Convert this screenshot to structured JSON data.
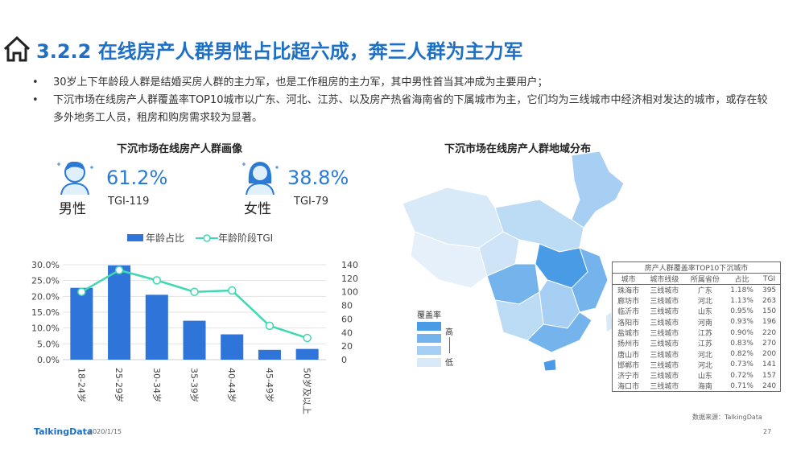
{
  "header": {
    "title": "3.2.2 在线房产人群男性占比超六成，奔三人群为主力军"
  },
  "bullets": [
    "30岁上下年龄段人群是结婚买房人群的主力军，也是工作租房的主力军，其中男性首当其冲成为主要用户；",
    "下沉市场在线房产人群覆盖率TOP10城市以广东、河北、江苏、以及房产热省海南省的下属城市为主，它们均为三线城市中经济相对发达的城市，或存在较多外地务工人员，租房和购房需求较为显著。"
  ],
  "bullet_marker": "•",
  "portrait": {
    "title": "下沉市场在线房产人群画像",
    "male": {
      "label": "男性",
      "pct": "61.2%",
      "tgi": "TGI-119"
    },
    "female": {
      "label": "女性",
      "pct": "38.8%",
      "tgi": "TGI-79"
    }
  },
  "chart_data": {
    "type": "bar",
    "categories": [
      "18-24岁",
      "25-29岁",
      "30-34岁",
      "35-39岁",
      "40-44岁",
      "45-49岁",
      "50岁及以上"
    ],
    "series": [
      {
        "name": "年龄占比",
        "type": "bar",
        "axis": "left",
        "values": [
          22.7,
          29.8,
          20.5,
          12.3,
          8.0,
          3.1,
          3.4
        ],
        "color": "#2f75d9"
      },
      {
        "name": "年龄阶段TGI",
        "type": "line",
        "axis": "right",
        "values": [
          100,
          132,
          117,
          100,
          102,
          50,
          32
        ],
        "color": "#3fd8b0"
      }
    ],
    "y_left": {
      "ylim": [
        0,
        30
      ],
      "ticks": [
        "0.0%",
        "5.0%",
        "10.0%",
        "15.0%",
        "20.0%",
        "25.0%",
        "30.0%"
      ]
    },
    "y_right": {
      "ylim": [
        0,
        140
      ],
      "ticks": [
        "0",
        "20",
        "40",
        "60",
        "80",
        "100",
        "120",
        "140"
      ]
    },
    "legend": "top",
    "grid": true
  },
  "map": {
    "title": "下沉市场在线房产人群地域分布",
    "legend_title": "覆盖率",
    "legend_high": "高",
    "legend_low": "低",
    "colors": [
      "#4a9be6",
      "#74b3ec",
      "#a6cff3",
      "#d8e9f8"
    ]
  },
  "table": {
    "title": "房产人群覆盖率TOP10下沉城市",
    "headers": [
      "城市",
      "城市线级",
      "所属省份",
      "占比",
      "TGI"
    ],
    "rows": [
      [
        "珠海市",
        "三线城市",
        "广东",
        "1.18%",
        "395"
      ],
      [
        "廊坊市",
        "三线城市",
        "河北",
        "1.13%",
        "263"
      ],
      [
        "临沂市",
        "三线城市",
        "山东",
        "0.95%",
        "150"
      ],
      [
        "洛阳市",
        "三线城市",
        "河南",
        "0.93%",
        "196"
      ],
      [
        "盐城市",
        "三线城市",
        "江苏",
        "0.90%",
        "220"
      ],
      [
        "扬州市",
        "三线城市",
        "江苏",
        "0.83%",
        "270"
      ],
      [
        "唐山市",
        "三线城市",
        "河北",
        "0.82%",
        "200"
      ],
      [
        "邯郸市",
        "三线城市",
        "河北",
        "0.73%",
        "141"
      ],
      [
        "济宁市",
        "三线城市",
        "山东",
        "0.72%",
        "157"
      ],
      [
        "海口市",
        "三线城市",
        "海南",
        "0.71%",
        "240"
      ]
    ]
  },
  "footer": {
    "brand": "TalkingData",
    "date": "2020/1/15",
    "source": "数据来源：TalkingData",
    "page": "27"
  }
}
